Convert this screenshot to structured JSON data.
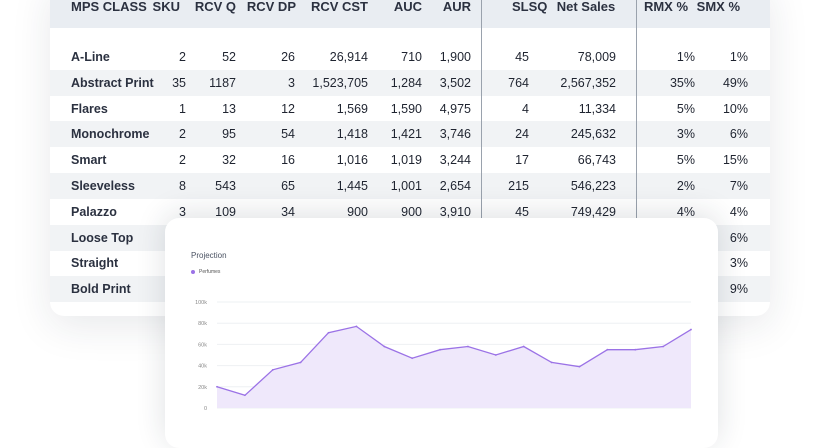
{
  "table": {
    "headers": [
      "MPS CLASS",
      "SKU",
      "RCV Q",
      "RCV DP",
      "RCV CST",
      "AUC",
      "AUR",
      "SLSQ",
      "Net Sales",
      "RMX %",
      "SMX %"
    ],
    "rows": [
      [
        "A-Line",
        "2",
        "52",
        "26",
        "26,914",
        "710",
        "1,900",
        "45",
        "78,009",
        "1%",
        "1%"
      ],
      [
        "Abstract Print",
        "35",
        "1187",
        "3",
        "1,523,705",
        "1,284",
        "3,502",
        "764",
        "2,567,352",
        "35%",
        "49%"
      ],
      [
        "Flares",
        "1",
        "13",
        "12",
        "1,569",
        "1,590",
        "4,975",
        "4",
        "11,334",
        "5%",
        "10%"
      ],
      [
        "Monochrome",
        "2",
        "95",
        "54",
        "1,418",
        "1,421",
        "3,746",
        "24",
        "245,632",
        "3%",
        "6%"
      ],
      [
        "Smart",
        "2",
        "32",
        "16",
        "1,016",
        "1,019",
        "3,244",
        "17",
        "66,743",
        "5%",
        "15%"
      ],
      [
        "Sleeveless",
        "8",
        "543",
        "65",
        "1,445",
        "1,001",
        "2,654",
        "215",
        "546,223",
        "2%",
        "7%"
      ],
      [
        "Palazzo",
        "3",
        "109",
        "34",
        "900",
        "900",
        "3,910",
        "45",
        "749,429",
        "4%",
        "4%"
      ],
      [
        "Loose Top",
        "",
        "",
        "",
        "",
        "",
        "",
        "",
        "",
        "",
        "6%"
      ],
      [
        "Straight",
        "",
        "",
        "",
        "",
        "",
        "",
        "",
        "",
        "",
        "3%"
      ],
      [
        "Bold Print",
        "",
        "",
        "",
        "",
        "",
        "",
        "",
        "",
        "",
        "9%"
      ]
    ]
  },
  "projection": {
    "title": "Projection",
    "legend_label": "Perfumes",
    "colors": {
      "line": "#9b72e6",
      "fill": "#efe8fb"
    }
  },
  "chart_data": {
    "type": "area",
    "title": "Projection",
    "series": [
      {
        "name": "Perfumes",
        "values": [
          20000,
          12000,
          36000,
          43000,
          71000,
          77000,
          58000,
          47000,
          55000,
          58000,
          50000,
          58000,
          43000,
          39000,
          55000,
          55000,
          58000,
          74000
        ]
      }
    ],
    "y_ticks": [
      "0",
      "20k",
      "40k",
      "60k",
      "80k",
      "100k"
    ],
    "ylim": [
      0,
      100000
    ],
    "grid": true,
    "legend": "top-left"
  }
}
